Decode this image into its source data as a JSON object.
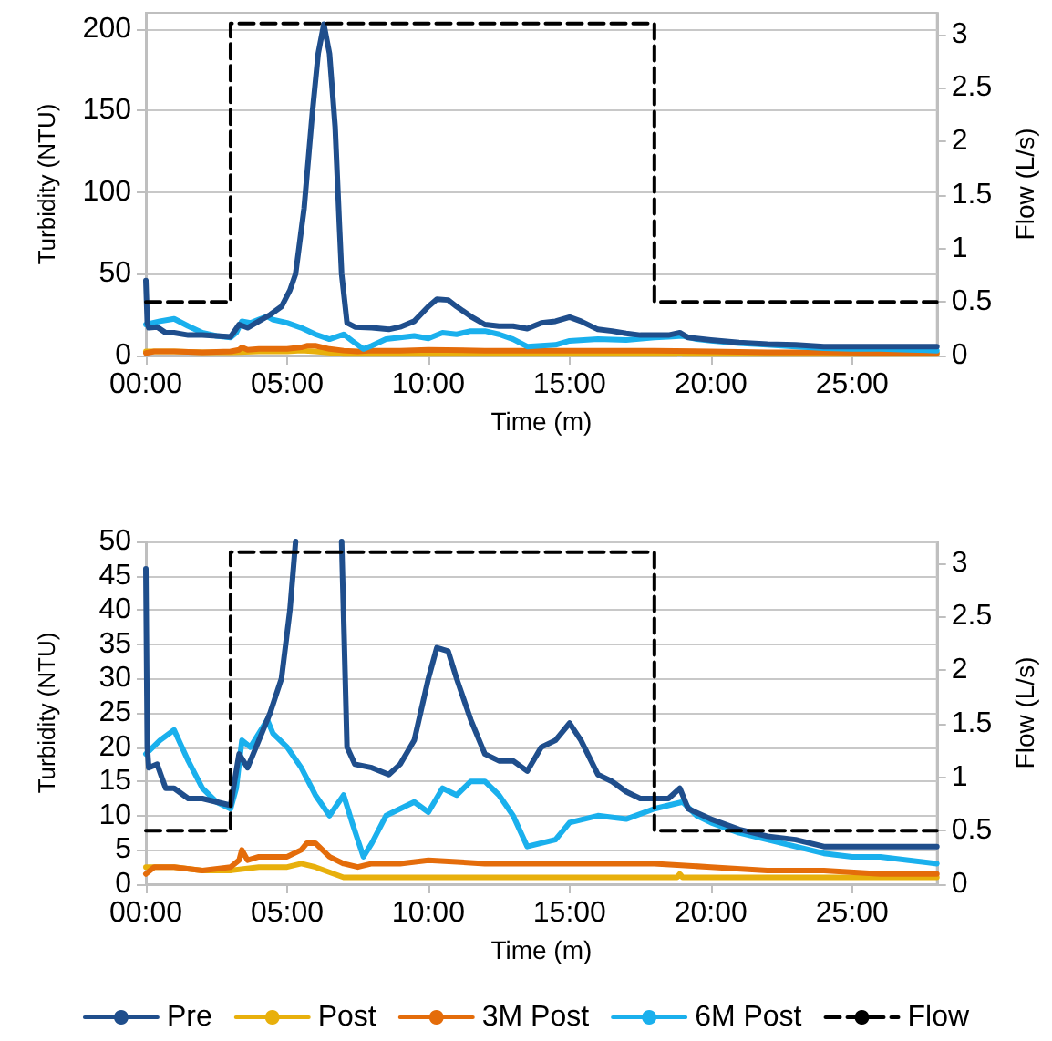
{
  "chart_data": [
    {
      "type": "line",
      "xlabel": "Time (m)",
      "ylabel": "Turbidity (NTU)",
      "y2label": "Flow (L/s)",
      "xlim": [
        0,
        28
      ],
      "xticks": [
        {
          "value": 0,
          "label": "00:00"
        },
        {
          "value": 5,
          "label": "05:00"
        },
        {
          "value": 10,
          "label": "10:00"
        },
        {
          "value": 15,
          "label": "15:00"
        },
        {
          "value": 20,
          "label": "20:00"
        },
        {
          "value": 25,
          "label": "25:00"
        }
      ],
      "ylim": [
        0,
        210
      ],
      "yticks": [
        0,
        50,
        100,
        150,
        200
      ],
      "y2lim": [
        0,
        3.2
      ],
      "y2ticks": [
        0,
        0.5,
        1,
        1.5,
        2,
        2.5,
        3
      ],
      "grid": "y",
      "legend": false,
      "marker": "none",
      "series": [
        {
          "color": "#e8b00c",
          "x": [
            0,
            1,
            2,
            3,
            4,
            5,
            5.5,
            6,
            7,
            10,
            15,
            18.8,
            18.9,
            19,
            22,
            25,
            28
          ],
          "values": [
            2.5,
            2.5,
            2,
            2,
            2.5,
            2.5,
            3,
            2.5,
            1,
            1,
            1,
            1,
            1.5,
            1,
            1,
            1,
            1
          ]
        },
        {
          "color": "#e46c0a",
          "x": [
            0,
            0.3,
            1,
            2,
            3,
            3.3,
            3.4,
            3.6,
            4,
            5,
            5.5,
            5.7,
            6,
            6.5,
            7,
            7.5,
            8,
            9,
            10,
            12,
            14,
            16,
            18,
            20,
            22,
            24,
            26,
            28
          ],
          "values": [
            1.5,
            2.5,
            2.5,
            2,
            2.5,
            3.5,
            5,
            3.5,
            4,
            4,
            5,
            6,
            6,
            4,
            3,
            2.5,
            3,
            3,
            3.5,
            3,
            3,
            3,
            3,
            2.5,
            2,
            2,
            1.5,
            1.5
          ]
        },
        {
          "color": "#1ab0ed",
          "x": [
            0,
            0.5,
            1,
            1.5,
            2,
            2.5,
            3,
            3.2,
            3.4,
            3.7,
            4,
            4.3,
            4.5,
            5,
            5.5,
            6,
            6.5,
            7,
            7.3,
            7.7,
            8,
            8.5,
            9,
            9.5,
            10,
            10.5,
            11,
            11.5,
            12,
            12.5,
            13,
            13.5,
            14,
            14.5,
            15,
            16,
            17,
            18,
            18.5,
            19,
            19.5,
            20,
            21,
            22,
            23,
            24,
            25,
            26,
            27,
            28
          ],
          "values": [
            19,
            21,
            22.5,
            18,
            14,
            12,
            11,
            14,
            21,
            20,
            22,
            24,
            22,
            20,
            17,
            13,
            10,
            13,
            9,
            4,
            6,
            10,
            11,
            12,
            10.5,
            14,
            13,
            15,
            15,
            13,
            10,
            5.5,
            6,
            6.5,
            9,
            10,
            9.5,
            11,
            11.5,
            12,
            10,
            9,
            7.5,
            6.5,
            5.5,
            4.5,
            4,
            4,
            3.5,
            3
          ]
        },
        {
          "color": "#1f4e8c",
          "x": [
            0,
            0.05,
            0.1,
            0.4,
            0.7,
            1,
            1.5,
            2,
            2.5,
            3,
            3.3,
            3.6,
            4,
            4.4,
            4.8,
            5.1,
            5.3,
            5.6,
            5.9,
            6.1,
            6.3,
            6.5,
            6.7,
            6.85,
            6.93,
            7.12,
            7.4,
            8,
            8.6,
            9,
            9.5,
            10,
            10.3,
            10.7,
            11,
            11.5,
            12,
            12.5,
            13,
            13.5,
            14,
            14.5,
            15,
            15.4,
            16,
            16.5,
            17,
            17.5,
            18,
            18.5,
            18.9,
            19.2,
            20,
            21,
            22,
            23,
            24,
            28
          ],
          "values": [
            46,
            20,
            17,
            17.5,
            14,
            14,
            12.5,
            12.5,
            12,
            11.5,
            19,
            17,
            21,
            25,
            30,
            40,
            50,
            90,
            150,
            185,
            203,
            185,
            140,
            80,
            50,
            20,
            17.5,
            17,
            16,
            17.5,
            21,
            30,
            34.5,
            34,
            30,
            24,
            19,
            18,
            18,
            16.5,
            20,
            21,
            23.5,
            21,
            16,
            15,
            13.5,
            12.5,
            12.5,
            12.5,
            14,
            11,
            9.5,
            8,
            7,
            6.5,
            5.5,
            5.5
          ]
        },
        {
          "color": "#000000",
          "axis": "y2",
          "line_style": "dashed",
          "x": [
            0,
            3,
            3,
            18,
            18,
            28
          ],
          "values": [
            0.5,
            0.5,
            3.1,
            3.1,
            0.5,
            0.5
          ]
        }
      ]
    },
    {
      "type": "line",
      "xlabel": "Time (m)",
      "ylabel": "Turbidity (NTU)",
      "y2label": "Flow (L/s)",
      "xlim": [
        0,
        28
      ],
      "xticks": [
        {
          "value": 0,
          "label": "00:00"
        },
        {
          "value": 5,
          "label": "05:00"
        },
        {
          "value": 10,
          "label": "10:00"
        },
        {
          "value": 15,
          "label": "15:00"
        },
        {
          "value": 20,
          "label": "20:00"
        },
        {
          "value": 25,
          "label": "25:00"
        }
      ],
      "ylim": [
        0,
        50
      ],
      "yticks": [
        0,
        5,
        10,
        15,
        20,
        25,
        30,
        35,
        40,
        45,
        50
      ],
      "y2lim": [
        0,
        3.2
      ],
      "y2ticks": [
        0,
        0.5,
        1,
        1.5,
        2,
        2.5,
        3
      ],
      "grid": "y",
      "legend": "bottom",
      "marker": "none",
      "series": [
        {
          "name": "Post",
          "color": "#e8b00c",
          "x": [
            0,
            1,
            2,
            3,
            4,
            5,
            5.5,
            6,
            7,
            10,
            15,
            18.8,
            18.9,
            19,
            22,
            25,
            28
          ],
          "values": [
            2.5,
            2.5,
            2,
            2,
            2.5,
            2.5,
            3,
            2.5,
            1,
            1,
            1,
            1,
            1.5,
            1,
            1,
            1,
            1
          ]
        },
        {
          "name": "3M Post",
          "color": "#e46c0a",
          "x": [
            0,
            0.3,
            1,
            2,
            3,
            3.3,
            3.4,
            3.6,
            4,
            5,
            5.5,
            5.7,
            6,
            6.5,
            7,
            7.5,
            8,
            9,
            10,
            12,
            14,
            16,
            18,
            20,
            22,
            24,
            26,
            28
          ],
          "values": [
            1.5,
            2.5,
            2.5,
            2,
            2.5,
            3.5,
            5,
            3.5,
            4,
            4,
            5,
            6,
            6,
            4,
            3,
            2.5,
            3,
            3,
            3.5,
            3,
            3,
            3,
            3,
            2.5,
            2,
            2,
            1.5,
            1.5
          ]
        },
        {
          "name": "6M Post",
          "color": "#1ab0ed",
          "x": [
            0,
            0.5,
            1,
            1.5,
            2,
            2.5,
            3,
            3.2,
            3.4,
            3.7,
            4,
            4.3,
            4.5,
            5,
            5.5,
            6,
            6.5,
            7,
            7.3,
            7.7,
            8,
            8.5,
            9,
            9.5,
            10,
            10.5,
            11,
            11.5,
            12,
            12.5,
            13,
            13.5,
            14,
            14.5,
            15,
            16,
            17,
            18,
            18.5,
            19,
            19.5,
            20,
            21,
            22,
            23,
            24,
            25,
            26,
            27,
            28
          ],
          "values": [
            19,
            21,
            22.5,
            18,
            14,
            12,
            11,
            14,
            21,
            20,
            22,
            24,
            22,
            20,
            17,
            13,
            10,
            13,
            9,
            4,
            6,
            10,
            11,
            12,
            10.5,
            14,
            13,
            15,
            15,
            13,
            10,
            5.5,
            6,
            6.5,
            9,
            10,
            9.5,
            11,
            11.5,
            12,
            10,
            9,
            7.5,
            6.5,
            5.5,
            4.5,
            4,
            4,
            3.5,
            3
          ]
        },
        {
          "name": "Pre",
          "color": "#1f4e8c",
          "x": [
            0,
            0.05,
            0.1,
            0.4,
            0.7,
            1,
            1.5,
            2,
            2.5,
            3,
            3.3,
            3.6,
            4,
            4.4,
            4.8,
            5.1,
            5.3,
            6,
            6.93,
            7.12,
            7.4,
            8,
            8.6,
            9,
            9.5,
            10,
            10.3,
            10.7,
            11,
            11.5,
            12,
            12.5,
            13,
            13.5,
            14,
            14.5,
            15,
            15.4,
            16,
            16.5,
            17,
            17.5,
            18,
            18.5,
            18.9,
            19.2,
            20,
            21,
            22,
            23,
            24,
            28
          ],
          "values": [
            46,
            20,
            17,
            17.5,
            14,
            14,
            12.5,
            12.5,
            12,
            11.5,
            19,
            17,
            21,
            25,
            30,
            40,
            50,
            null,
            50,
            20,
            17.5,
            17,
            16,
            17.5,
            21,
            30,
            34.5,
            34,
            30,
            24,
            19,
            18,
            18,
            16.5,
            20,
            21,
            23.5,
            21,
            16,
            15,
            13.5,
            12.5,
            12.5,
            12.5,
            14,
            11,
            9.5,
            8,
            7,
            6.5,
            5.5,
            5.5
          ]
        },
        {
          "name": "Flow",
          "color": "#000000",
          "axis": "y2",
          "line_style": "dashed",
          "x": [
            0,
            3,
            3,
            18,
            18,
            28
          ],
          "values": [
            0.5,
            0.5,
            3.1,
            3.1,
            0.5,
            0.5
          ]
        }
      ]
    }
  ]
}
